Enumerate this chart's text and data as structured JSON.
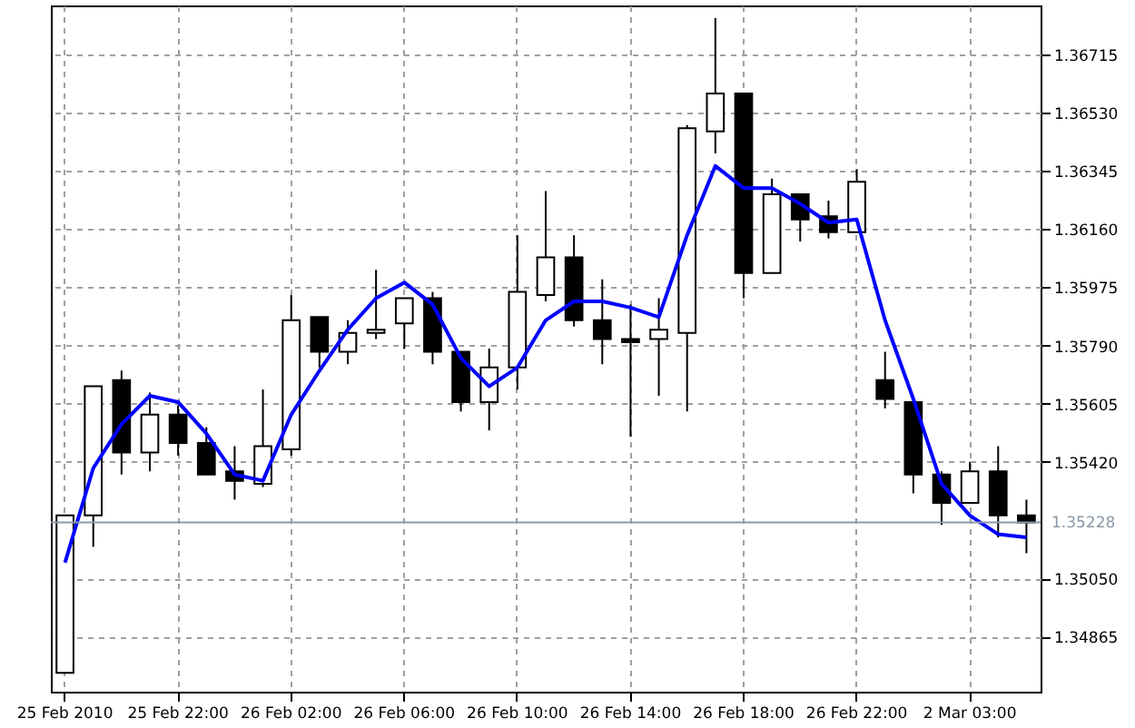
{
  "chart_data": {
    "type": "candlestick",
    "categories": [
      "25 Feb 2010",
      null,
      null,
      null,
      "25 Feb 22:00",
      null,
      null,
      null,
      "26 Feb 02:00",
      null,
      null,
      null,
      "26 Feb 06:00",
      null,
      null,
      null,
      "26 Feb 10:00",
      null,
      null,
      null,
      "26 Feb 14:00",
      null,
      null,
      null,
      "26 Feb 18:00",
      null,
      null,
      null,
      "26 Feb 22:00",
      null,
      null,
      null,
      "2 Mar 03:00",
      null,
      null
    ],
    "ohlc": [
      [
        1.3475,
        1.3525,
        1.3475,
        1.3525
      ],
      [
        1.3525,
        1.3566,
        1.3515,
        1.3566
      ],
      [
        1.3568,
        1.3571,
        1.3538,
        1.3545
      ],
      [
        1.3545,
        1.3564,
        1.3539,
        1.3557
      ],
      [
        1.3557,
        1.356,
        1.3544,
        1.3548
      ],
      [
        1.3548,
        1.3553,
        1.3538,
        1.3538
      ],
      [
        1.3539,
        1.3547,
        1.353,
        1.3536
      ],
      [
        1.3535,
        1.3565,
        1.3534,
        1.3547
      ],
      [
        1.3546,
        1.3595,
        1.3544,
        1.3587
      ],
      [
        1.3588,
        1.3588,
        1.3572,
        1.3577
      ],
      [
        1.3577,
        1.3587,
        1.3573,
        1.3583
      ],
      [
        1.3583,
        1.3603,
        1.3581,
        1.3584
      ],
      [
        1.3586,
        1.3594,
        1.3578,
        1.3594
      ],
      [
        1.3594,
        1.3596,
        1.3573,
        1.3577
      ],
      [
        1.3577,
        1.3577,
        1.3558,
        1.3561
      ],
      [
        1.3561,
        1.3578,
        1.3552,
        1.3572
      ],
      [
        1.3572,
        1.3614,
        1.3565,
        1.3596
      ],
      [
        1.3595,
        1.3628,
        1.3593,
        1.3607
      ],
      [
        1.3607,
        1.3614,
        1.3585,
        1.3587
      ],
      [
        1.3587,
        1.36,
        1.3573,
        1.3581
      ],
      [
        1.3581,
        1.3592,
        1.355,
        1.358
      ],
      [
        1.3581,
        1.3594,
        1.3563,
        1.3584
      ],
      [
        1.3583,
        1.3649,
        1.3558,
        1.3648
      ],
      [
        1.3647,
        1.3683,
        1.364,
        1.3659
      ],
      [
        1.3659,
        1.3659,
        1.3594,
        1.3602
      ],
      [
        1.3602,
        1.3632,
        1.3602,
        1.3627
      ],
      [
        1.3627,
        1.3627,
        1.3612,
        1.3619
      ],
      [
        1.362,
        1.3625,
        1.3613,
        1.3615
      ],
      [
        1.3615,
        1.3635,
        1.3615,
        1.3631
      ],
      [
        1.3568,
        1.3577,
        1.3559,
        1.3562
      ],
      [
        1.3561,
        1.3561,
        1.3532,
        1.3538
      ],
      [
        1.3538,
        1.3539,
        1.3522,
        1.3529
      ],
      [
        1.3529,
        1.3542,
        1.3529,
        1.3539
      ],
      [
        1.3539,
        1.3547,
        1.3518,
        1.3525
      ],
      [
        1.3525,
        1.353,
        1.3513,
        1.35228
      ]
    ],
    "series": [
      {
        "type": "line",
        "color": "#0000ff",
        "values": [
          1.351,
          1.354,
          1.3554,
          1.3563,
          1.3561,
          1.3551,
          1.3538,
          1.3536,
          1.3557,
          1.3571,
          1.3584,
          1.3594,
          1.3599,
          1.3592,
          1.3575,
          1.3566,
          1.3572,
          1.3587,
          1.3593,
          1.3593,
          1.3591,
          1.3588,
          1.3614,
          1.3636,
          1.3629,
          1.3629,
          1.3624,
          1.3618,
          1.3619,
          1.3587,
          1.3562,
          1.3535,
          1.3525,
          1.3519,
          1.3518
        ]
      }
    ],
    "ylim": [
      1.3469,
      1.3687
    ],
    "yticks": [
      1.34865,
      {
        "value": 1.3505,
        "label": "1.35050"
      },
      {
        "value": 1.3542,
        "label": "1.35420"
      },
      1.35605,
      {
        "value": 1.3579,
        "label": "1.35790"
      },
      1.35975,
      {
        "value": 1.3616,
        "label": "1.36160"
      },
      1.36345,
      {
        "value": 1.3653,
        "label": "1.36530"
      },
      1.36715
    ],
    "ref_lines": [
      {
        "axis": "y",
        "value": 1.35228,
        "label": "1.35228",
        "color": "#8a98a8"
      }
    ],
    "grid": true
  }
}
